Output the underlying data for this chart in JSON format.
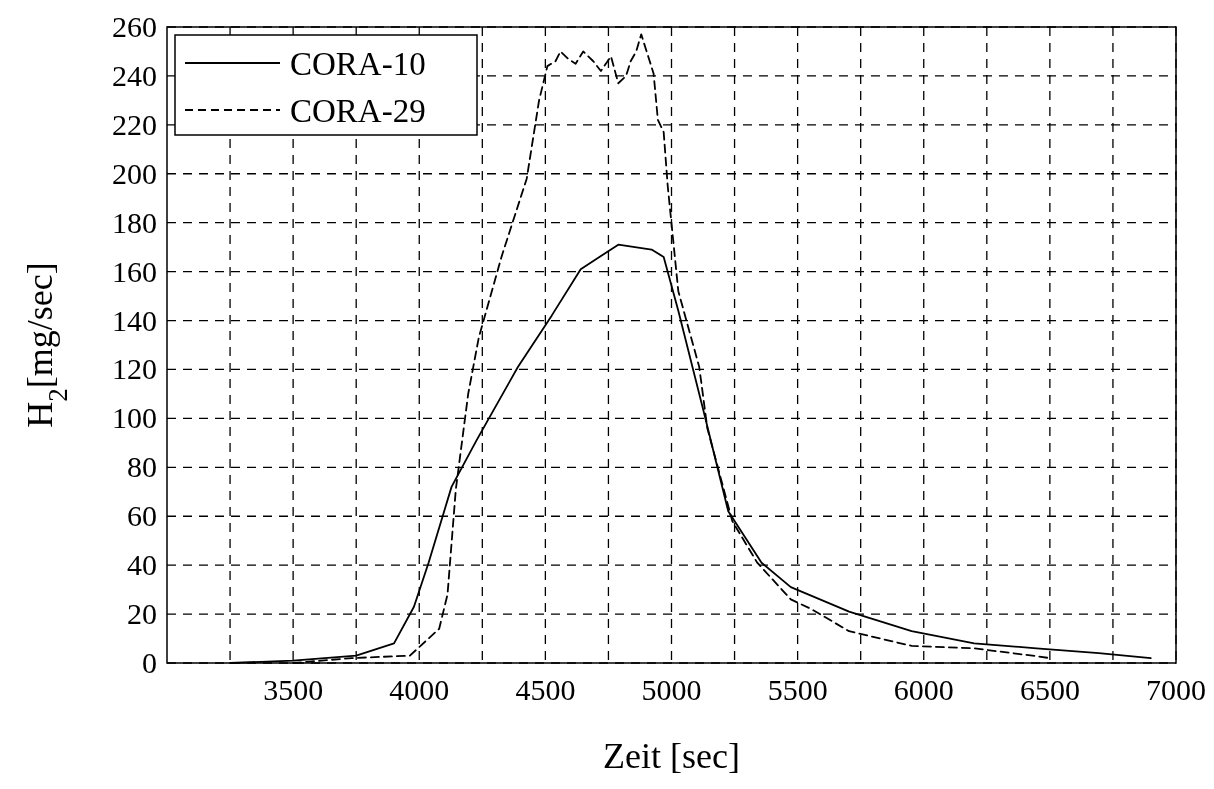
{
  "chart_data": {
    "type": "line",
    "xlabel": "Zeit [sec]",
    "ylabel": "H$_{2}$[mg/sec]",
    "xlim": [
      3000,
      7000
    ],
    "ylim": [
      0,
      260
    ],
    "xticks": [
      {
        "value": 3250,
        "label": null
      },
      3500,
      {
        "value": 3750,
        "label": null
      },
      4000,
      {
        "value": 4250,
        "label": null
      },
      4500,
      {
        "value": 4750,
        "label": null
      },
      5000,
      {
        "value": 5250,
        "label": null
      },
      5500,
      {
        "value": 5750,
        "label": null
      },
      6000,
      {
        "value": 6250,
        "label": null
      },
      6500,
      {
        "value": 6750,
        "label": null
      },
      7000
    ],
    "yticks": [
      0,
      20,
      40,
      60,
      80,
      100,
      120,
      140,
      160,
      180,
      200,
      220,
      240,
      260
    ],
    "grid": true,
    "legend": "top left",
    "series": [
      {
        "name": "CORA-10",
        "color": "#000000",
        "line_style": "solid",
        "x": [
          3250,
          3500,
          3750,
          3900,
          3979,
          4037,
          4128,
          4227,
          4391,
          4525,
          4640,
          4789,
          4921,
          4969,
          5027,
          5127,
          5225,
          5357,
          5473,
          5704,
          5952,
          6200,
          6447,
          6694,
          6900
        ],
        "values": [
          0,
          1,
          3,
          8,
          23,
          41,
          72,
          91,
          121,
          142,
          161,
          171,
          169,
          166,
          144,
          103,
          62,
          41,
          31,
          21,
          13,
          8,
          6,
          4,
          2
        ]
      },
      {
        "name": "CORA-29",
        "color": "#000000",
        "line_style": "dashed",
        "x": [
          3500,
          3732,
          3963,
          4079,
          4112,
          4145,
          4194,
          4236,
          4326,
          4426,
          4475,
          4508,
          4540,
          4560,
          4590,
          4620,
          4650,
          4690,
          4720,
          4760,
          4789,
          4820,
          4838,
          4860,
          4880,
          4929,
          4946,
          4969,
          4985,
          5027,
          5110,
          5142,
          5241,
          5340,
          5473,
          5555,
          5704,
          5952,
          6200,
          6431,
          6500
        ],
        "values": [
          0,
          2,
          3,
          14,
          28,
          71,
          110,
          133,
          166,
          198,
          230,
          244,
          246,
          250,
          247,
          245,
          250,
          246,
          242,
          248,
          237,
          240,
          246,
          250,
          257,
          241,
          222,
          217,
          195,
          152,
          121,
          96,
          58,
          41,
          26,
          22,
          13,
          7,
          6,
          3,
          2
        ]
      }
    ]
  }
}
